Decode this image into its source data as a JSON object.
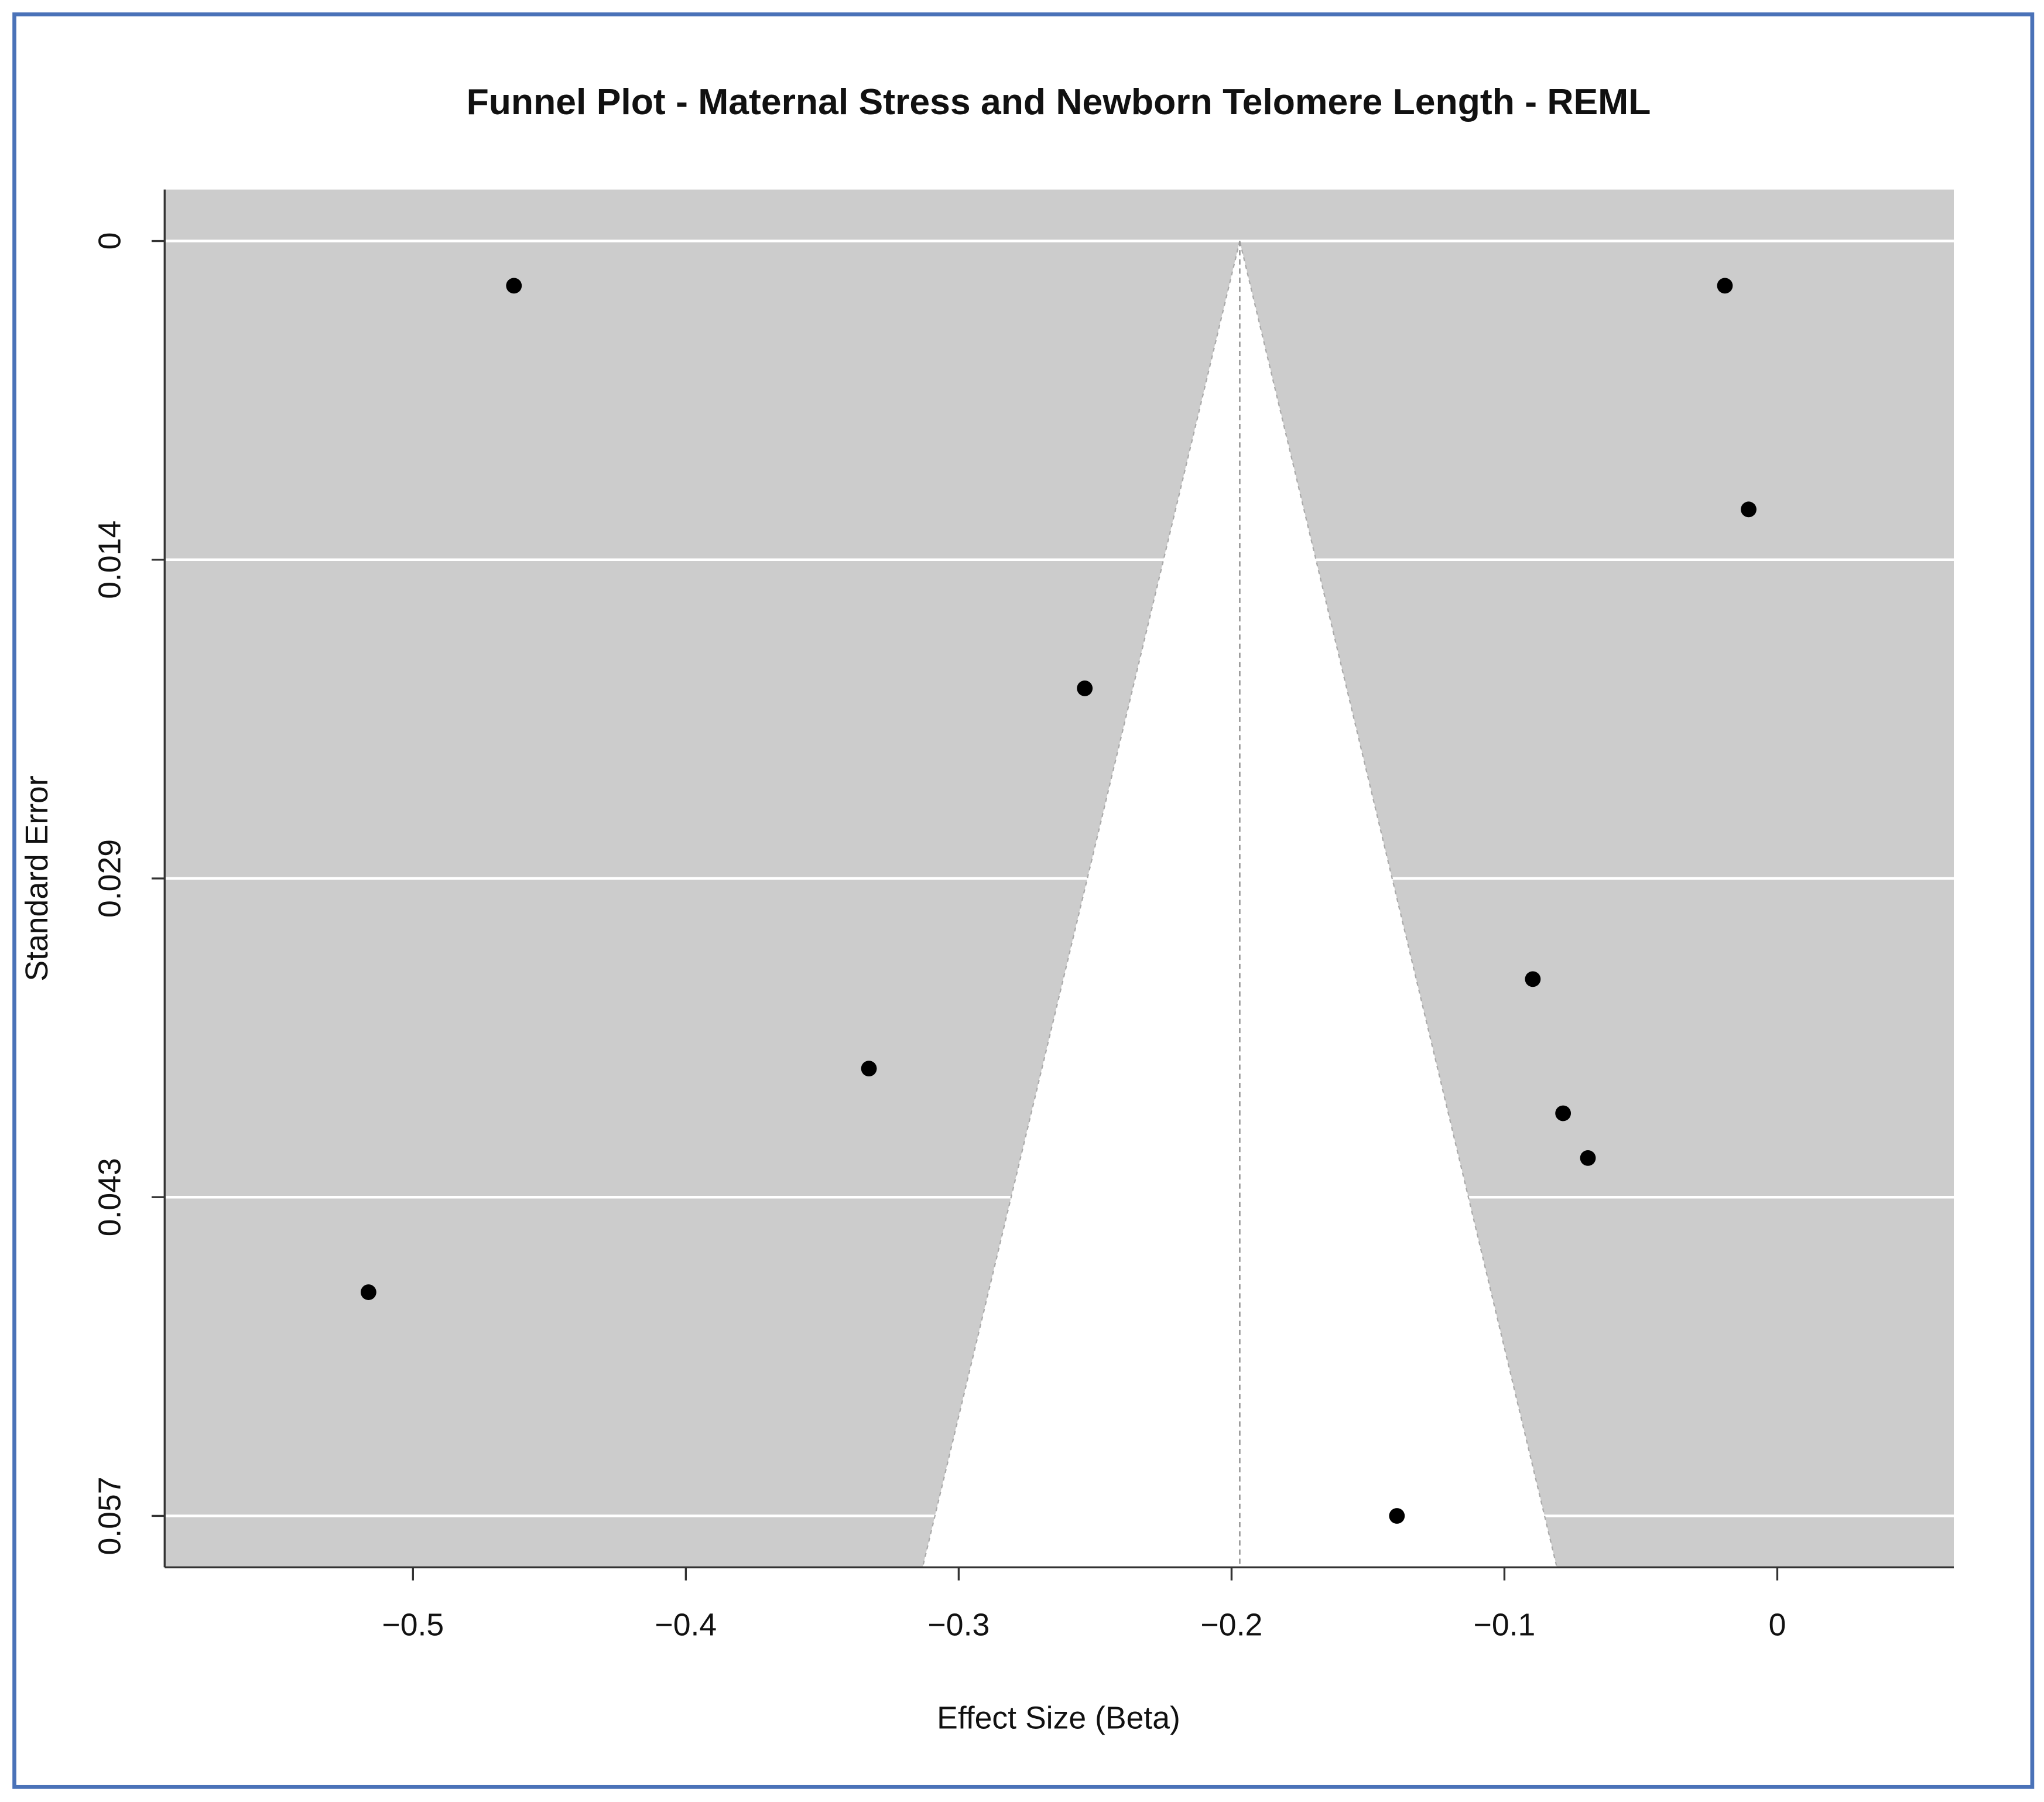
{
  "chart_data": {
    "type": "funnel",
    "title": "Funnel Plot - Maternal Stress and Newborn Telomere Length - REML",
    "x_label": "Effect Size (Beta)",
    "y_label": "Standard Error",
    "x": [
      -0.463,
      -0.0192,
      -0.0105,
      -0.2538,
      -0.0896,
      -0.3329,
      -0.0785,
      -0.0694,
      -0.5163,
      -0.1394
    ],
    "values": [
      0.002,
      0.002,
      0.012,
      0.02,
      0.033,
      0.037,
      0.039,
      0.041,
      0.047,
      0.057
    ],
    "color": "#000000",
    "center": -0.197,
    "z": 1.96,
    "xlim": [
      -0.591,
      0.0647
    ],
    "ylim": [
      0.0593,
      -0.0023
    ],
    "xticks": [
      {
        "value": -0.5,
        "label": "−0.5"
      },
      {
        "value": -0.4,
        "label": "−0.4"
      },
      {
        "value": -0.3,
        "label": "−0.3"
      },
      {
        "value": -0.2,
        "label": "−0.2"
      },
      {
        "value": -0.1,
        "label": "−0.1"
      },
      0
    ],
    "yticks": [
      0,
      {
        "value": 0.01425,
        "label": "0.014"
      },
      {
        "value": 0.0285,
        "label": "0.029"
      },
      {
        "value": 0.04275,
        "label": "0.043"
      },
      0.057
    ],
    "grid": true
  }
}
